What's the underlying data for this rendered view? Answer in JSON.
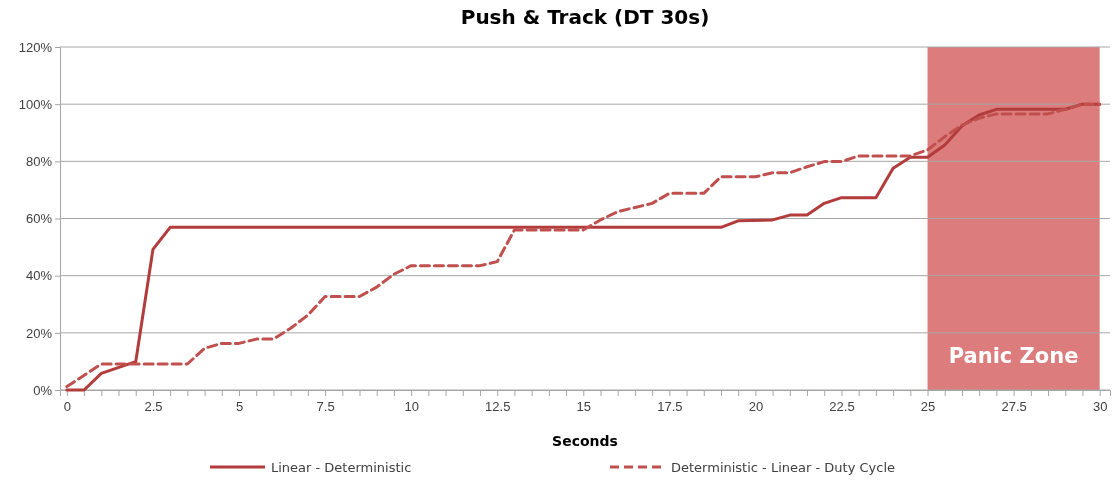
{
  "chart_data": {
    "type": "line",
    "title": "Push & Track (DT 30s)",
    "xlabel": "Seconds",
    "xlim": [
      -0.2,
      30.3
    ],
    "xticks": [
      0,
      {
        "value": 0.5,
        "label": null
      },
      {
        "value": 1,
        "label": null
      },
      {
        "value": 1.5,
        "label": null
      },
      {
        "value": 2,
        "label": null
      },
      2.5,
      {
        "value": 3,
        "label": null
      },
      {
        "value": 3.5,
        "label": null
      },
      {
        "value": 4,
        "label": null
      },
      {
        "value": 4.5,
        "label": null
      },
      5,
      {
        "value": 5.5,
        "label": null
      },
      {
        "value": 6,
        "label": null
      },
      {
        "value": 6.5,
        "label": null
      },
      {
        "value": 7,
        "label": null
      },
      7.5,
      {
        "value": 8,
        "label": null
      },
      {
        "value": 8.5,
        "label": null
      },
      {
        "value": 9,
        "label": null
      },
      {
        "value": 9.5,
        "label": null
      },
      10,
      {
        "value": 10.5,
        "label": null
      },
      {
        "value": 11,
        "label": null
      },
      {
        "value": 11.5,
        "label": null
      },
      {
        "value": 12,
        "label": null
      },
      12.5,
      {
        "value": 13,
        "label": null
      },
      {
        "value": 13.5,
        "label": null
      },
      {
        "value": 14,
        "label": null
      },
      {
        "value": 14.5,
        "label": null
      },
      15,
      {
        "value": 15.5,
        "label": null
      },
      {
        "value": 16,
        "label": null
      },
      {
        "value": 16.5,
        "label": null
      },
      {
        "value": 17,
        "label": null
      },
      17.5,
      {
        "value": 18,
        "label": null
      },
      {
        "value": 18.5,
        "label": null
      },
      {
        "value": 19,
        "label": null
      },
      {
        "value": 19.5,
        "label": null
      },
      20,
      {
        "value": 20.5,
        "label": null
      },
      {
        "value": 21,
        "label": null
      },
      {
        "value": 21.5,
        "label": null
      },
      {
        "value": 22,
        "label": null
      },
      22.5,
      {
        "value": 23,
        "label": null
      },
      {
        "value": 23.5,
        "label": null
      },
      {
        "value": 24,
        "label": null
      },
      {
        "value": 24.5,
        "label": null
      },
      25,
      {
        "value": 25.5,
        "label": null
      },
      {
        "value": 26,
        "label": null
      },
      {
        "value": 26.5,
        "label": null
      },
      {
        "value": 27,
        "label": null
      },
      27.5,
      {
        "value": 28,
        "label": null
      },
      {
        "value": 28.5,
        "label": null
      },
      {
        "value": 29,
        "label": null
      },
      {
        "value": 29.5,
        "label": null
      },
      30
    ],
    "ylim": [
      0,
      120
    ],
    "yticks": [
      {
        "value": 0,
        "label": "0%"
      },
      {
        "value": 20,
        "label": "20%"
      },
      {
        "value": 40,
        "label": "40%"
      },
      {
        "value": 60,
        "label": "60%"
      },
      {
        "value": 80,
        "label": "80%"
      },
      {
        "value": 100,
        "label": "100%"
      },
      {
        "value": 120,
        "label": "120%"
      }
    ],
    "grid": "y",
    "legend": "bottom",
    "bands": [
      {
        "axis": "x",
        "from": 25,
        "to": 30,
        "label": "Panic Zone",
        "color": "#dc7c7c"
      }
    ],
    "series": [
      {
        "name": "Linear - Deterministic",
        "color": "#b23b3b",
        "line_style": "solid",
        "x": [
          0,
          0.5,
          1,
          2,
          2.5,
          3,
          19,
          19.5,
          20.5,
          21,
          21.5,
          22,
          22.5,
          23.5,
          24,
          24.5,
          25,
          25.5,
          26,
          26.5,
          27,
          29,
          29.5,
          30
        ],
        "values": [
          0,
          0,
          5.8,
          9.9,
          49.2,
          56.9,
          56.9,
          59.2,
          59.5,
          61.2,
          61.2,
          65.3,
          67.3,
          67.3,
          77.6,
          81.4,
          81.4,
          85.7,
          92.4,
          96.2,
          98.2,
          98.2,
          100,
          100
        ]
      },
      {
        "name": "Deterministic - Linear - Duty Cycle",
        "color": "#c0504d",
        "line_style": "dashed",
        "x": [
          0,
          1,
          3.5,
          4,
          4.5,
          5,
          5.5,
          6,
          6.5,
          7,
          7.5,
          8.5,
          9,
          9.5,
          10,
          12,
          12.5,
          13,
          15,
          15.5,
          16,
          17,
          17.5,
          18.5,
          19,
          20,
          20.5,
          21,
          21.5,
          22,
          22.5,
          23,
          24.5,
          25,
          25.5,
          26,
          26.5,
          27,
          28.5,
          29,
          29.5,
          30
        ],
        "values": [
          1.2,
          9.1,
          9.1,
          14.6,
          16.3,
          16.3,
          17.8,
          17.8,
          21.6,
          26.2,
          32.7,
          32.7,
          36,
          40.5,
          43.5,
          43.5,
          44.9,
          56,
          56,
          59.5,
          62.4,
          65.3,
          68.8,
          68.8,
          74.6,
          74.6,
          76,
          76,
          78.1,
          79.9,
          79.9,
          81.9,
          81.9,
          84,
          88.6,
          92.7,
          95.1,
          96.6,
          96.6,
          98.2,
          100,
          100
        ]
      }
    ]
  }
}
